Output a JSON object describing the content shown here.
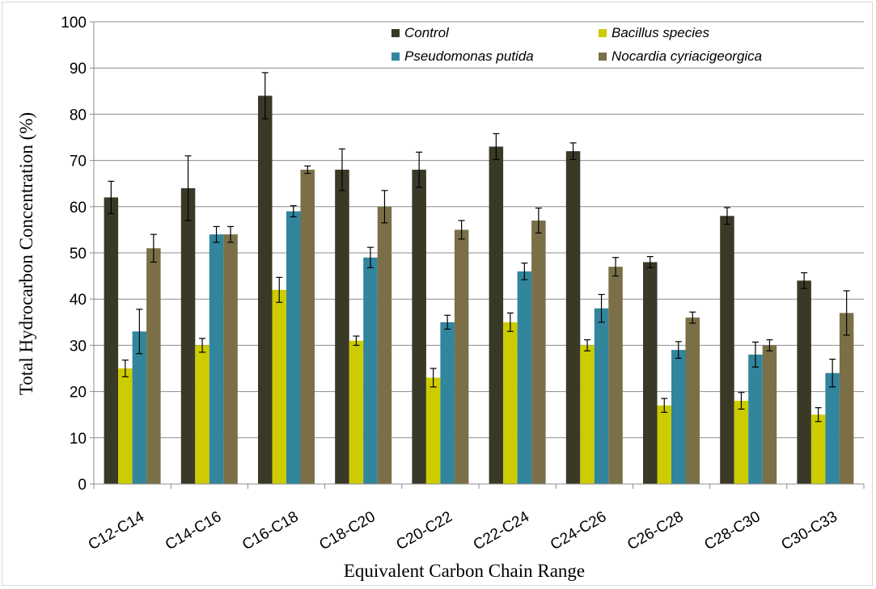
{
  "chart_data": {
    "type": "bar",
    "title": "",
    "xlabel": "Equivalent Carbon Chain Range",
    "ylabel": "Total Hydrocarbon Concentration (%)",
    "ylim": [
      0,
      100
    ],
    "yticks": [
      0,
      10,
      20,
      30,
      40,
      50,
      60,
      70,
      80,
      90,
      100
    ],
    "grid": "horizontal",
    "legend_position": "top-right",
    "categories": [
      "C12-C14",
      "C14-C16",
      "C16-C18",
      "C18-C20",
      "C20-C22",
      "C22-C24",
      "C24-C26",
      "C26-C28",
      "C28-C30",
      "C30-C33"
    ],
    "series": [
      {
        "name": "Control",
        "color": "#3a3826",
        "values": [
          62,
          64,
          84,
          68,
          68,
          73,
          72,
          48,
          58,
          44
        ],
        "errors": [
          3.5,
          7.0,
          5.0,
          4.5,
          3.8,
          2.8,
          1.8,
          1.2,
          1.8,
          1.7
        ]
      },
      {
        "name": "Bacillus species",
        "color": "#cccc00",
        "values": [
          25,
          30,
          42,
          31,
          23,
          35,
          30,
          17,
          18,
          15
        ],
        "errors": [
          1.8,
          1.5,
          2.7,
          1.0,
          2.0,
          2.0,
          1.2,
          1.5,
          1.8,
          1.5
        ]
      },
      {
        "name": "Pseudomonas putida",
        "color": "#31859c",
        "values": [
          33,
          54,
          59,
          49,
          35,
          46,
          38,
          29,
          28,
          24
        ],
        "errors": [
          4.8,
          1.7,
          1.2,
          2.2,
          1.5,
          1.8,
          3.0,
          1.8,
          2.7,
          3.0
        ]
      },
      {
        "name": "Nocardia  cyriacigeorgica",
        "color": "#7a6f47",
        "values": [
          51,
          54,
          68,
          60,
          55,
          57,
          47,
          36,
          30,
          37
        ],
        "errors": [
          3.0,
          1.7,
          0.8,
          3.5,
          2.0,
          2.7,
          2.0,
          1.2,
          1.2,
          4.8
        ]
      }
    ]
  }
}
